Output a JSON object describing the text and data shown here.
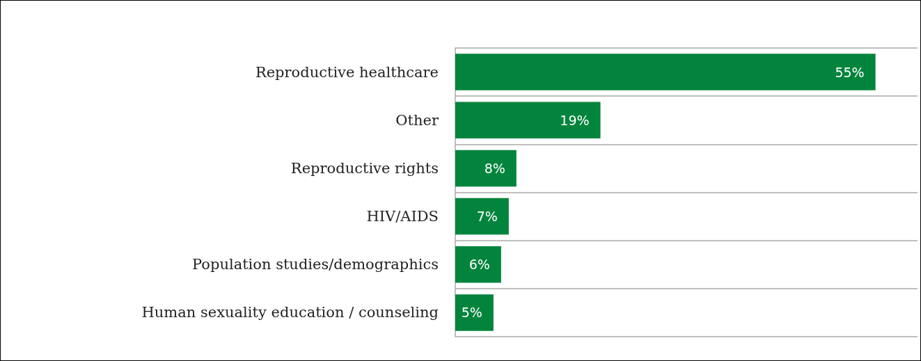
{
  "chart_data": {
    "type": "bar",
    "orientation": "horizontal",
    "categories": [
      "Reproductive healthcare",
      "Other",
      "Reproductive rights",
      "HIV/AIDS",
      "Population studies/demographics",
      "Human sexuality education / counseling"
    ],
    "values": [
      55,
      19,
      8,
      7,
      6,
      5
    ],
    "value_labels": [
      "55%",
      "19%",
      "8%",
      "7%",
      "6%",
      "5%"
    ],
    "color": "#03843d",
    "grid": "y"
  }
}
